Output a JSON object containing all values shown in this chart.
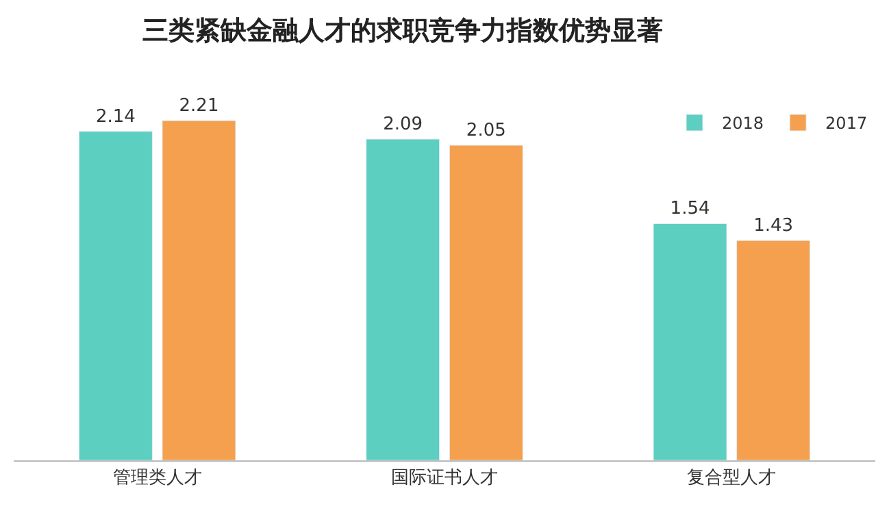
{
  "chart_data": {
    "type": "bar",
    "title": "三类紧缺金融人才的求职竞争力指数优势显著",
    "categories": [
      "管理类人才",
      "国际证书人才",
      "复合型人才"
    ],
    "series": [
      {
        "name": "2018",
        "color": "#5dcfc0",
        "values": [
          2.14,
          2.09,
          1.54
        ]
      },
      {
        "name": "2017",
        "color": "#f5a04e",
        "values": [
          2.21,
          2.05,
          1.43
        ]
      }
    ],
    "data_labels": true,
    "legend": "top right"
  }
}
